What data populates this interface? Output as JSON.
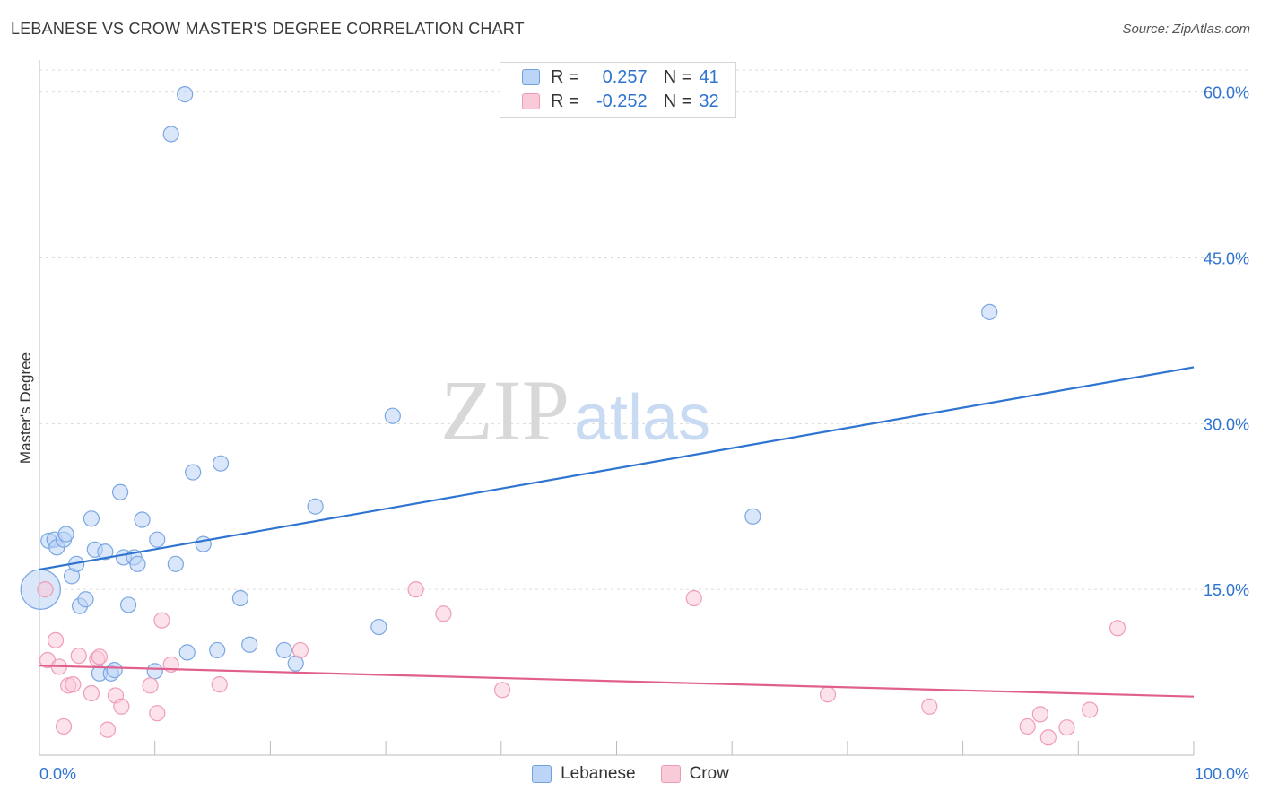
{
  "header": {
    "title": "LEBANESE VS CROW MASTER'S DEGREE CORRELATION CHART",
    "source": "Source: ZipAtlas.com"
  },
  "watermark": {
    "zip": "ZIP",
    "atlas": "atlas"
  },
  "legend": {
    "rows": [
      {
        "r_label": "R =",
        "r_value": "0.257",
        "n_label": "N =",
        "n_value": "41",
        "color": "#6fa0e0",
        "fill": "#bcd4f5"
      },
      {
        "r_label": "R =",
        "r_value": "-0.252",
        "n_label": "N =",
        "n_value": "32",
        "color": "#ee9ab5",
        "fill": "#f9cad8"
      }
    ]
  },
  "chart_data": {
    "type": "scatter",
    "title": "LEBANESE VS CROW MASTER'S DEGREE CORRELATION CHART",
    "xlabel": "",
    "ylabel": "Master's Degree",
    "xlim": [
      0,
      100
    ],
    "ylim": [
      0,
      62
    ],
    "x_tick_labels": [
      "0.0%",
      "100.0%"
    ],
    "y_ticks": [
      15,
      30,
      45,
      60
    ],
    "y_tick_labels": [
      "15.0%",
      "30.0%",
      "45.0%",
      "60.0%"
    ],
    "series": [
      {
        "name": "Lebanese",
        "color": "#2e74d0",
        "fill": "#bcd4f5",
        "stroke": "#7aa7e2",
        "points": [
          [
            0.1,
            15.0,
            2.6
          ],
          [
            0.8,
            19.4,
            1
          ],
          [
            1.3,
            19.5,
            1
          ],
          [
            1.5,
            18.8,
            1
          ],
          [
            2.1,
            19.5,
            1
          ],
          [
            2.3,
            20.0,
            1
          ],
          [
            2.8,
            16.2,
            1
          ],
          [
            3.2,
            17.3,
            1
          ],
          [
            3.5,
            13.5,
            1
          ],
          [
            4.0,
            14.1,
            1
          ],
          [
            4.5,
            21.4,
            1
          ],
          [
            4.8,
            18.6,
            1
          ],
          [
            5.2,
            7.4,
            1
          ],
          [
            5.7,
            18.4,
            1
          ],
          [
            6.2,
            7.4,
            1
          ],
          [
            6.5,
            7.7,
            1
          ],
          [
            7.0,
            23.8,
            1
          ],
          [
            7.3,
            17.9,
            1
          ],
          [
            7.7,
            13.6,
            1
          ],
          [
            8.2,
            17.9,
            1
          ],
          [
            8.5,
            17.3,
            1
          ],
          [
            8.9,
            21.3,
            1
          ],
          [
            10.0,
            7.6,
            1
          ],
          [
            10.2,
            19.5,
            1
          ],
          [
            11.8,
            17.3,
            1
          ],
          [
            11.4,
            56.2,
            1
          ],
          [
            12.6,
            59.8,
            1
          ],
          [
            12.8,
            9.3,
            1
          ],
          [
            13.3,
            25.6,
            1
          ],
          [
            14.2,
            19.1,
            1
          ],
          [
            15.4,
            9.5,
            1
          ],
          [
            15.7,
            26.4,
            1
          ],
          [
            17.4,
            14.2,
            1
          ],
          [
            18.2,
            10.0,
            1
          ],
          [
            21.2,
            9.5,
            1
          ],
          [
            22.2,
            8.3,
            1
          ],
          [
            23.9,
            22.5,
            1
          ],
          [
            29.4,
            11.6,
            1
          ],
          [
            30.6,
            30.7,
            1
          ],
          [
            61.8,
            21.6,
            1
          ],
          [
            82.3,
            40.1,
            1
          ]
        ],
        "trend": {
          "x": [
            0,
            100
          ],
          "y": [
            16.8,
            35.1
          ]
        }
      },
      {
        "name": "Crow",
        "color": "#e0608b",
        "fill": "#f9cad8",
        "stroke": "#ef9db8",
        "points": [
          [
            0.5,
            15.0,
            1
          ],
          [
            0.7,
            8.6,
            1
          ],
          [
            1.4,
            10.4,
            1
          ],
          [
            1.7,
            8.0,
            1
          ],
          [
            2.1,
            2.6,
            1
          ],
          [
            2.5,
            6.3,
            1
          ],
          [
            2.9,
            6.4,
            1
          ],
          [
            3.4,
            9.0,
            1
          ],
          [
            4.5,
            5.6,
            1
          ],
          [
            5.0,
            8.7,
            1
          ],
          [
            5.2,
            8.9,
            1
          ],
          [
            5.9,
            2.3,
            1
          ],
          [
            6.6,
            5.4,
            1
          ],
          [
            7.1,
            4.4,
            1
          ],
          [
            9.6,
            6.3,
            1
          ],
          [
            10.2,
            3.8,
            1
          ],
          [
            10.6,
            12.2,
            1
          ],
          [
            11.4,
            8.2,
            1
          ],
          [
            15.6,
            6.4,
            1
          ],
          [
            22.6,
            9.5,
            1
          ],
          [
            32.6,
            15.0,
            1
          ],
          [
            35.0,
            12.8,
            1
          ],
          [
            40.1,
            5.9,
            1
          ],
          [
            56.7,
            14.2,
            1
          ],
          [
            68.3,
            5.5,
            1
          ],
          [
            77.1,
            4.4,
            1
          ],
          [
            85.6,
            2.6,
            1
          ],
          [
            86.7,
            3.7,
            1
          ],
          [
            87.4,
            1.6,
            1
          ],
          [
            89.0,
            2.5,
            1
          ],
          [
            91.0,
            4.1,
            1
          ],
          [
            93.4,
            11.5,
            1
          ]
        ],
        "trend": {
          "x": [
            0,
            100
          ],
          "y": [
            8.1,
            5.3
          ]
        }
      }
    ]
  },
  "bottom_legend": {
    "items": [
      {
        "label": "Lebanese",
        "stroke": "#6fa0e0",
        "fill": "#bcd4f5"
      },
      {
        "label": "Crow",
        "stroke": "#ee9ab5",
        "fill": "#f9cad8"
      }
    ]
  }
}
